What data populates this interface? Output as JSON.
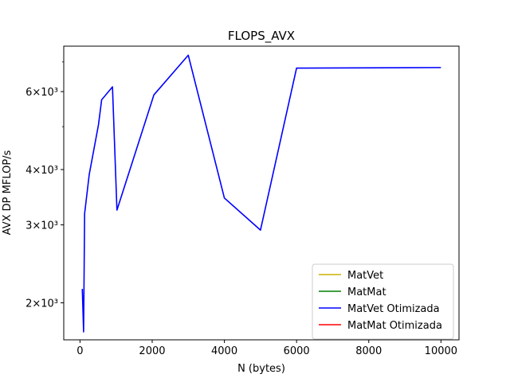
{
  "chart_data": {
    "type": "line",
    "title": "FLOPS_AVX",
    "xlabel": "N (bytes)",
    "ylabel": "AVX DP MFLOP/s",
    "yscale": "log",
    "xlim": [
      -450,
      10500
    ],
    "ylim": [
      1650,
      7600
    ],
    "grid": false,
    "legend_position": "lower-right",
    "x_ticks": [
      0,
      2000,
      4000,
      6000,
      8000,
      10000
    ],
    "x_tick_labels": [
      "0",
      "2000",
      "4000",
      "6000",
      "8000",
      "10000"
    ],
    "y_major_ticks": [
      2000,
      3000,
      4000,
      6000
    ],
    "y_major_tick_labels": [
      "2×10³",
      "3×10³",
      "4×10³",
      "6×10³"
    ],
    "y_minor_ticks": [
      5000,
      7000
    ],
    "series": [
      {
        "name": "MatVet",
        "color": "#c8b400",
        "x": [],
        "y": []
      },
      {
        "name": "MatMat",
        "color": "#008000",
        "x": [],
        "y": []
      },
      {
        "name": "MatVet Otimizada",
        "color": "#0000ff",
        "x": [
          64,
          100,
          128,
          256,
          512,
          600,
          900,
          1024,
          2048,
          3000,
          4000,
          5000,
          6000,
          10000
        ],
        "y": [
          2150,
          1720,
          3180,
          3900,
          5050,
          5750,
          6150,
          3240,
          5900,
          7250,
          3450,
          2920,
          6780,
          6800
        ]
      },
      {
        "name": "MatMat Otimizada",
        "color": "#ff0000",
        "x": [],
        "y": []
      }
    ]
  }
}
